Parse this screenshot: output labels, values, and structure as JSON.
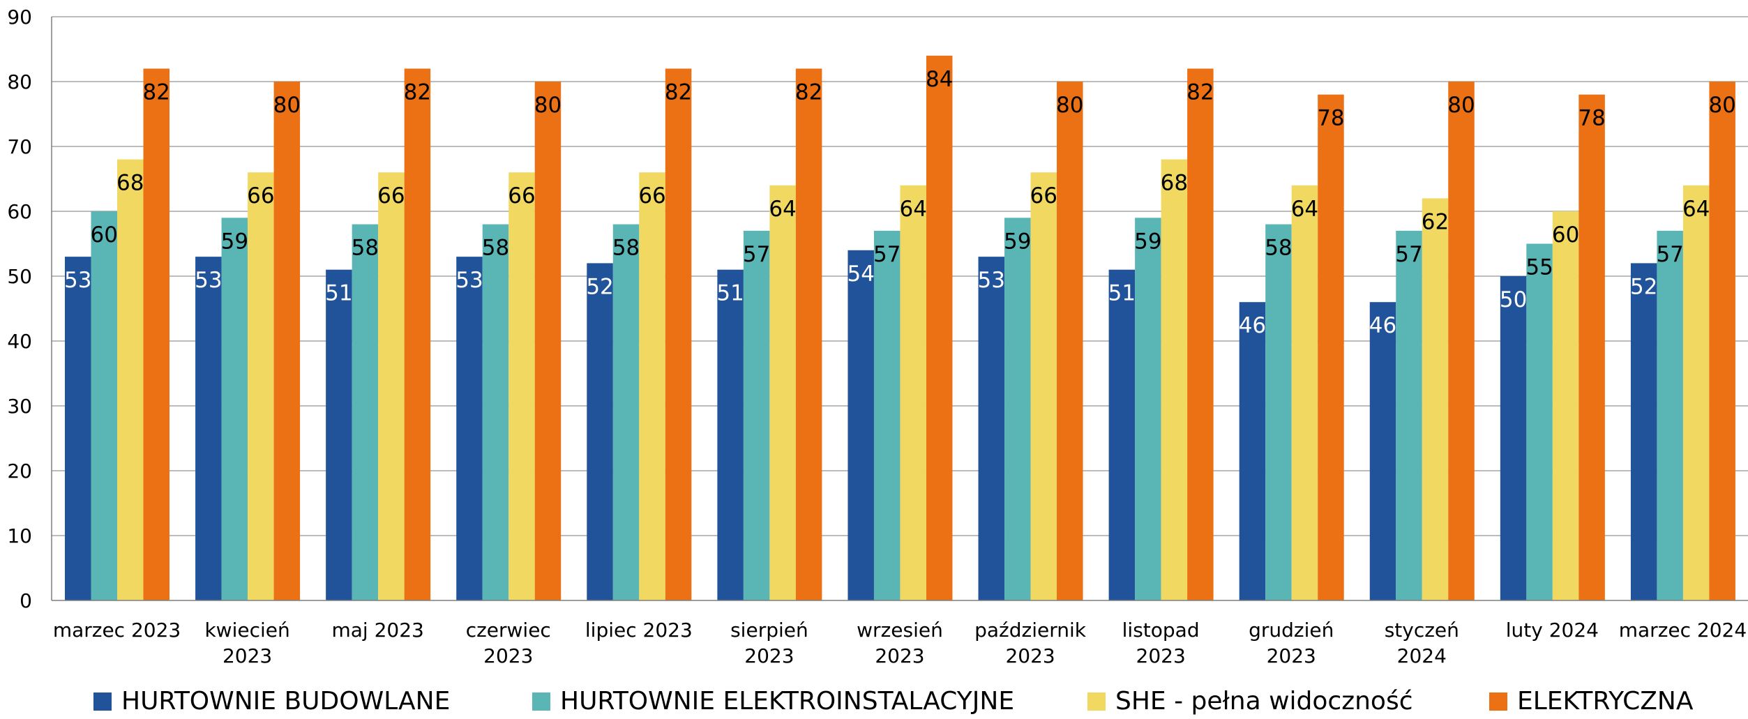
{
  "chart_data": {
    "type": "bar",
    "title": "",
    "xlabel": "",
    "ylabel": "",
    "ylim": [
      0,
      90
    ],
    "ytick_step": 10,
    "grid": true,
    "legend_position": "bottom",
    "categories": [
      "marzec 2023",
      "kwiecień 2023",
      "maj 2023",
      "czerwiec 2023",
      "lipiec 2023",
      "sierpień 2023",
      "wrzesień 2023",
      "październik 2023",
      "listopad 2023",
      "grudzień 2023",
      "styczeń 2024",
      "luty 2024",
      "marzec 2024"
    ],
    "series": [
      {
        "name": "HURTOWNIE BUDOWLANE",
        "color": "#20539A",
        "label_color": "#ffffff",
        "values": [
          53,
          53,
          51,
          53,
          52,
          51,
          54,
          53,
          51,
          46,
          46,
          50,
          52
        ]
      },
      {
        "name": "HURTOWNIE ELEKTROINSTALACYJNE",
        "color": "#5AB5B5",
        "label_color": "#000000",
        "values": [
          60,
          59,
          58,
          58,
          58,
          57,
          57,
          59,
          59,
          58,
          57,
          55,
          57
        ]
      },
      {
        "name": "SHE - pełna widoczność",
        "color": "#F1D961",
        "label_color": "#000000",
        "values": [
          68,
          66,
          66,
          66,
          66,
          64,
          64,
          66,
          68,
          64,
          62,
          60,
          64
        ]
      },
      {
        "name": "ELEKTRYCZNA",
        "color": "#EC7014",
        "label_color": "#000000",
        "values": [
          82,
          80,
          82,
          80,
          82,
          82,
          84,
          80,
          82,
          78,
          80,
          78,
          80
        ]
      }
    ]
  }
}
